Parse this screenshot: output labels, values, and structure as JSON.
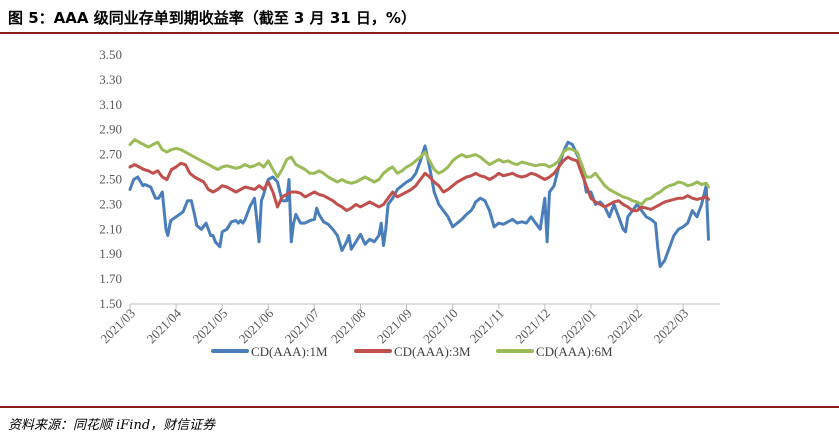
{
  "header": {
    "title": "图 5：AAA 级同业存单到期收益率（截至 3 月 31 日，%）"
  },
  "footer": {
    "source": "资料来源：同花顺 iFind，财信证券"
  },
  "chart_data": {
    "type": "line",
    "title": "图 5：AAA 级同业存单到期收益率（截至 3 月 31 日，%）",
    "xlabel": "",
    "ylabel": "",
    "ylim": [
      1.5,
      3.5
    ],
    "yticks": [
      "3.50",
      "3.30",
      "3.10",
      "2.90",
      "2.70",
      "2.50",
      "2.30",
      "2.10",
      "1.90",
      "1.70",
      "1.50"
    ],
    "xlim": [
      0,
      12.8
    ],
    "xticks": [
      "2021/03",
      "2021/04",
      "2021/05",
      "2021/06",
      "2021/07",
      "2021/08",
      "2021/09",
      "2021/10",
      "2021/11",
      "2021/12",
      "2022/01",
      "2022/02",
      "2022/03"
    ],
    "grid": false,
    "legend_position": "bottom",
    "series": [
      {
        "name": "CD(AAA):1M",
        "color": "#4a7ebb",
        "x": [
          0.0,
          0.08,
          0.17,
          0.28,
          0.32,
          0.45,
          0.55,
          0.62,
          0.7,
          0.78,
          0.82,
          0.88,
          1.0,
          1.15,
          1.25,
          1.33,
          1.4,
          1.45,
          1.55,
          1.65,
          1.75,
          1.8,
          1.85,
          1.95,
          2.0,
          2.1,
          2.2,
          2.3,
          2.35,
          2.4,
          2.45,
          2.5,
          2.6,
          2.7,
          2.8,
          2.85,
          2.9,
          2.95,
          3.0,
          3.1,
          3.2,
          3.3,
          3.4,
          3.45,
          3.5,
          3.55,
          3.6,
          3.7,
          3.8,
          3.9,
          4.0,
          4.05,
          4.1,
          4.2,
          4.3,
          4.4,
          4.5,
          4.6,
          4.7,
          4.75,
          4.8,
          4.9,
          5.0,
          5.1,
          5.2,
          5.3,
          5.4,
          5.45,
          5.5,
          5.55,
          5.6,
          5.7,
          5.8,
          5.9,
          6.0,
          6.1,
          6.2,
          6.3,
          6.4,
          6.5,
          6.6,
          6.7,
          6.8,
          6.9,
          7.0,
          7.1,
          7.2,
          7.3,
          7.4,
          7.45,
          7.5,
          7.6,
          7.7,
          7.8,
          7.9,
          8.0,
          8.1,
          8.2,
          8.3,
          8.4,
          8.5,
          8.6,
          8.7,
          8.8,
          8.9,
          9.0,
          9.05,
          9.1,
          9.2,
          9.3,
          9.4,
          9.5,
          9.6,
          9.7,
          9.8,
          9.9,
          10.0,
          10.1,
          10.2,
          10.3,
          10.4,
          10.5,
          10.55,
          10.6,
          10.7,
          10.75,
          10.8,
          10.9,
          11.0,
          11.1,
          11.2,
          11.3,
          11.4,
          11.45,
          11.5,
          11.6,
          11.7,
          11.8,
          11.9,
          12.0,
          12.1,
          12.2,
          12.3,
          12.4,
          12.5,
          12.55
        ],
        "values": [
          2.42,
          2.5,
          2.52,
          2.45,
          2.46,
          2.44,
          2.35,
          2.35,
          2.4,
          2.1,
          2.05,
          2.17,
          2.2,
          2.24,
          2.33,
          2.33,
          2.22,
          2.13,
          2.1,
          2.15,
          2.05,
          2.05,
          2.0,
          1.96,
          2.08,
          2.1,
          2.16,
          2.17,
          2.15,
          2.17,
          2.15,
          2.18,
          2.28,
          2.35,
          2.0,
          2.33,
          2.38,
          2.45,
          2.5,
          2.52,
          2.48,
          2.33,
          2.33,
          2.5,
          2.0,
          2.15,
          2.22,
          2.15,
          2.15,
          2.17,
          2.18,
          2.27,
          2.22,
          2.16,
          2.14,
          2.1,
          2.05,
          1.93,
          2.0,
          2.05,
          1.94,
          2.0,
          2.06,
          1.98,
          2.02,
          2.0,
          2.05,
          2.15,
          1.97,
          2.1,
          2.3,
          2.35,
          2.42,
          2.45,
          2.48,
          2.5,
          2.55,
          2.65,
          2.77,
          2.6,
          2.4,
          2.3,
          2.25,
          2.2,
          2.12,
          2.15,
          2.18,
          2.22,
          2.25,
          2.28,
          2.32,
          2.35,
          2.33,
          2.25,
          2.12,
          2.15,
          2.14,
          2.16,
          2.18,
          2.15,
          2.16,
          2.15,
          2.2,
          2.15,
          2.1,
          2.35,
          2.0,
          2.4,
          2.45,
          2.6,
          2.72,
          2.8,
          2.78,
          2.7,
          2.62,
          2.4,
          2.4,
          2.3,
          2.32,
          2.28,
          2.2,
          2.3,
          2.25,
          2.2,
          2.1,
          2.08,
          2.2,
          2.25,
          2.3,
          2.25,
          2.2,
          2.18,
          2.15,
          1.95,
          1.8,
          1.85,
          1.95,
          2.05,
          2.1,
          2.12,
          2.15,
          2.25,
          2.2,
          2.3,
          2.45,
          2.02
        ]
      },
      {
        "name": "CD(AAA):3M",
        "color": "#c0504d",
        "x": [
          0.0,
          0.1,
          0.2,
          0.3,
          0.4,
          0.5,
          0.6,
          0.7,
          0.8,
          0.9,
          1.0,
          1.1,
          1.2,
          1.3,
          1.4,
          1.5,
          1.6,
          1.7,
          1.8,
          1.9,
          2.0,
          2.1,
          2.2,
          2.3,
          2.4,
          2.5,
          2.6,
          2.7,
          2.8,
          2.9,
          3.0,
          3.1,
          3.2,
          3.3,
          3.4,
          3.5,
          3.6,
          3.7,
          3.8,
          3.9,
          4.0,
          4.1,
          4.2,
          4.3,
          4.4,
          4.5,
          4.6,
          4.7,
          4.8,
          4.9,
          5.0,
          5.1,
          5.2,
          5.3,
          5.4,
          5.5,
          5.6,
          5.7,
          5.8,
          5.9,
          6.0,
          6.1,
          6.2,
          6.3,
          6.4,
          6.5,
          6.6,
          6.7,
          6.8,
          6.9,
          7.0,
          7.1,
          7.2,
          7.3,
          7.4,
          7.5,
          7.6,
          7.7,
          7.8,
          7.9,
          8.0,
          8.1,
          8.2,
          8.3,
          8.4,
          8.5,
          8.6,
          8.7,
          8.8,
          8.9,
          9.0,
          9.1,
          9.2,
          9.3,
          9.4,
          9.5,
          9.6,
          9.7,
          9.8,
          9.9,
          10.0,
          10.1,
          10.2,
          10.3,
          10.4,
          10.5,
          10.6,
          10.7,
          10.8,
          10.9,
          11.0,
          11.1,
          11.2,
          11.3,
          11.4,
          11.5,
          11.6,
          11.7,
          11.8,
          11.9,
          12.0,
          12.1,
          12.2,
          12.3,
          12.4,
          12.5,
          12.55
        ],
        "values": [
          2.6,
          2.62,
          2.6,
          2.58,
          2.57,
          2.55,
          2.57,
          2.52,
          2.5,
          2.58,
          2.6,
          2.63,
          2.62,
          2.55,
          2.52,
          2.5,
          2.48,
          2.42,
          2.4,
          2.42,
          2.45,
          2.44,
          2.42,
          2.4,
          2.42,
          2.44,
          2.43,
          2.42,
          2.45,
          2.42,
          2.48,
          2.4,
          2.28,
          2.36,
          2.38,
          2.4,
          2.4,
          2.39,
          2.36,
          2.38,
          2.4,
          2.38,
          2.37,
          2.35,
          2.33,
          2.3,
          2.28,
          2.25,
          2.27,
          2.3,
          2.28,
          2.3,
          2.32,
          2.3,
          2.28,
          2.3,
          2.35,
          2.4,
          2.36,
          2.38,
          2.4,
          2.42,
          2.45,
          2.5,
          2.55,
          2.52,
          2.48,
          2.45,
          2.4,
          2.42,
          2.45,
          2.48,
          2.5,
          2.52,
          2.53,
          2.55,
          2.53,
          2.52,
          2.5,
          2.52,
          2.55,
          2.53,
          2.54,
          2.55,
          2.53,
          2.52,
          2.53,
          2.55,
          2.54,
          2.52,
          2.5,
          2.52,
          2.55,
          2.6,
          2.65,
          2.68,
          2.66,
          2.65,
          2.55,
          2.45,
          2.35,
          2.32,
          2.3,
          2.28,
          2.3,
          2.32,
          2.33,
          2.3,
          2.28,
          2.25,
          2.25,
          2.28,
          2.27,
          2.26,
          2.28,
          2.3,
          2.32,
          2.33,
          2.34,
          2.35,
          2.35,
          2.37,
          2.35,
          2.34,
          2.35,
          2.36,
          2.34
        ]
      },
      {
        "name": "CD(AAA):6M",
        "color": "#9bbb59",
        "x": [
          0.0,
          0.1,
          0.2,
          0.3,
          0.4,
          0.5,
          0.6,
          0.7,
          0.8,
          0.9,
          1.0,
          1.1,
          1.2,
          1.3,
          1.4,
          1.5,
          1.6,
          1.7,
          1.8,
          1.9,
          2.0,
          2.1,
          2.2,
          2.3,
          2.4,
          2.5,
          2.6,
          2.7,
          2.8,
          2.9,
          3.0,
          3.1,
          3.2,
          3.3,
          3.4,
          3.5,
          3.6,
          3.7,
          3.8,
          3.9,
          4.0,
          4.1,
          4.2,
          4.3,
          4.4,
          4.5,
          4.6,
          4.7,
          4.8,
          4.9,
          5.0,
          5.1,
          5.2,
          5.3,
          5.4,
          5.5,
          5.6,
          5.7,
          5.8,
          5.9,
          6.0,
          6.1,
          6.2,
          6.3,
          6.4,
          6.5,
          6.6,
          6.7,
          6.8,
          6.9,
          7.0,
          7.1,
          7.2,
          7.3,
          7.4,
          7.5,
          7.6,
          7.7,
          7.8,
          7.9,
          8.0,
          8.1,
          8.2,
          8.3,
          8.4,
          8.5,
          8.6,
          8.7,
          8.8,
          8.9,
          9.0,
          9.1,
          9.2,
          9.3,
          9.4,
          9.5,
          9.6,
          9.7,
          9.8,
          9.9,
          10.0,
          10.1,
          10.2,
          10.3,
          10.4,
          10.5,
          10.6,
          10.7,
          10.8,
          10.9,
          11.0,
          11.1,
          11.2,
          11.3,
          11.4,
          11.5,
          11.6,
          11.7,
          11.8,
          11.9,
          12.0,
          12.1,
          12.2,
          12.3,
          12.4,
          12.5,
          12.55
        ],
        "values": [
          2.78,
          2.82,
          2.8,
          2.78,
          2.76,
          2.78,
          2.8,
          2.74,
          2.72,
          2.74,
          2.75,
          2.74,
          2.72,
          2.7,
          2.68,
          2.66,
          2.64,
          2.62,
          2.6,
          2.58,
          2.6,
          2.61,
          2.6,
          2.59,
          2.6,
          2.62,
          2.6,
          2.61,
          2.63,
          2.6,
          2.65,
          2.58,
          2.52,
          2.58,
          2.66,
          2.68,
          2.62,
          2.6,
          2.58,
          2.55,
          2.55,
          2.57,
          2.55,
          2.52,
          2.5,
          2.48,
          2.5,
          2.48,
          2.47,
          2.48,
          2.5,
          2.52,
          2.5,
          2.48,
          2.5,
          2.55,
          2.58,
          2.6,
          2.55,
          2.57,
          2.6,
          2.62,
          2.65,
          2.68,
          2.72,
          2.65,
          2.58,
          2.55,
          2.57,
          2.6,
          2.65,
          2.68,
          2.7,
          2.68,
          2.69,
          2.7,
          2.68,
          2.65,
          2.62,
          2.64,
          2.66,
          2.64,
          2.65,
          2.63,
          2.62,
          2.64,
          2.63,
          2.62,
          2.61,
          2.62,
          2.62,
          2.6,
          2.62,
          2.65,
          2.72,
          2.75,
          2.74,
          2.72,
          2.62,
          2.52,
          2.52,
          2.55,
          2.5,
          2.45,
          2.42,
          2.4,
          2.38,
          2.36,
          2.35,
          2.33,
          2.32,
          2.3,
          2.34,
          2.35,
          2.38,
          2.4,
          2.43,
          2.45,
          2.46,
          2.48,
          2.47,
          2.45,
          2.46,
          2.48,
          2.46,
          2.47,
          2.44
        ]
      }
    ]
  }
}
